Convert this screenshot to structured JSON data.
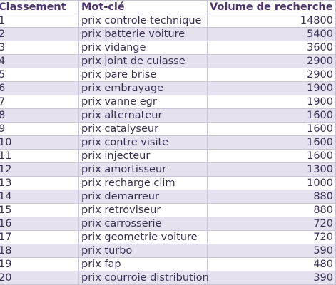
{
  "table": {
    "headers": [
      "Classement",
      "Mot-clé",
      "Volume de recherche"
    ],
    "rows": [
      {
        "rank": "1",
        "keyword": "prix controle technique",
        "volume": "14800"
      },
      {
        "rank": "2",
        "keyword": "prix batterie voiture",
        "volume": "5400"
      },
      {
        "rank": "3",
        "keyword": "prix vidange",
        "volume": "3600"
      },
      {
        "rank": "4",
        "keyword": "prix joint de culasse",
        "volume": "2900"
      },
      {
        "rank": "5",
        "keyword": "prix pare brise",
        "volume": "2900"
      },
      {
        "rank": "6",
        "keyword": "prix embrayage",
        "volume": "1900"
      },
      {
        "rank": "7",
        "keyword": "prix vanne egr",
        "volume": "1900"
      },
      {
        "rank": "8",
        "keyword": "prix alternateur",
        "volume": "1600"
      },
      {
        "rank": "9",
        "keyword": "prix catalyseur",
        "volume": "1600"
      },
      {
        "rank": "10",
        "keyword": "prix contre visite",
        "volume": "1600"
      },
      {
        "rank": "11",
        "keyword": "prix injecteur",
        "volume": "1600"
      },
      {
        "rank": "12",
        "keyword": "prix amortisseur",
        "volume": "1300"
      },
      {
        "rank": "13",
        "keyword": "prix recharge clim",
        "volume": "1000"
      },
      {
        "rank": "14",
        "keyword": "prix demarreur",
        "volume": "880"
      },
      {
        "rank": "15",
        "keyword": "prix retroviseur",
        "volume": "880"
      },
      {
        "rank": "16",
        "keyword": "prix carrosserie",
        "volume": "720"
      },
      {
        "rank": "17",
        "keyword": "prix geometrie voiture",
        "volume": "720"
      },
      {
        "rank": "18",
        "keyword": "prix turbo",
        "volume": "590"
      },
      {
        "rank": "19",
        "keyword": "prix fap",
        "volume": "480"
      },
      {
        "rank": "20",
        "keyword": "prix courroie distribution",
        "volume": "390"
      }
    ]
  },
  "colors": {
    "header_text": "#4b3470",
    "row_text": "#3a2f52",
    "stripe": "#e6e1ef",
    "grid": "#c9c4d6"
  }
}
